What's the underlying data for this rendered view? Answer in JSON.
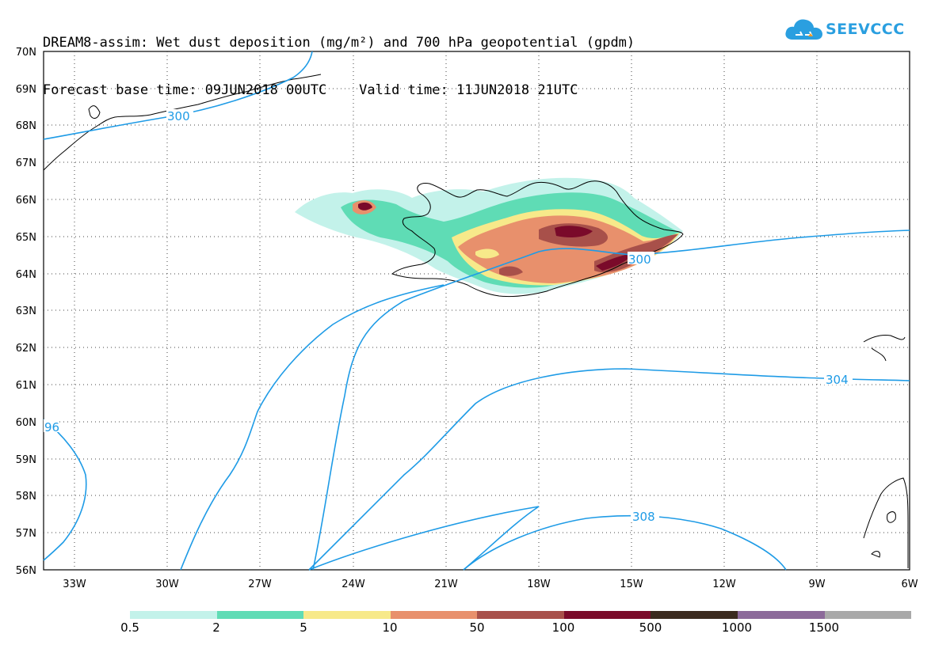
{
  "header": {
    "line1": "DREAM8-assim: Wet dust deposition (mg/m²) and 700 hPa geopotential (gpdm)",
    "line2": "Forecast base time: 09JUN2018 00UTC    Valid time: 11JUN2018 21UTC"
  },
  "logo": {
    "text": "SEEVCCC",
    "icon": "cloud-icon",
    "color": "#2a9fe0"
  },
  "map": {
    "lat_labels": [
      "70N",
      "69N",
      "68N",
      "67N",
      "66N",
      "65N",
      "64N",
      "63N",
      "62N",
      "61N",
      "60N",
      "59N",
      "58N",
      "57N",
      "56N"
    ],
    "lon_labels": [
      "33W",
      "30W",
      "27W",
      "24W",
      "21W",
      "18W",
      "15W",
      "12W",
      "9W",
      "6W"
    ],
    "contour_color": "#1e9be6",
    "contour_labels": [
      "300",
      "300",
      "304",
      "96",
      "308"
    ]
  },
  "colorbar": {
    "colors": [
      "#c3f2ea",
      "#5fdcb5",
      "#f7e98a",
      "#e8906c",
      "#a8504a",
      "#7a0a2a",
      "#3a2a1e",
      "#8c6a9a",
      "#a9a9a9"
    ],
    "labels": [
      "0.5",
      "2",
      "5",
      "10",
      "50",
      "100",
      "500",
      "1000",
      "1500"
    ]
  }
}
